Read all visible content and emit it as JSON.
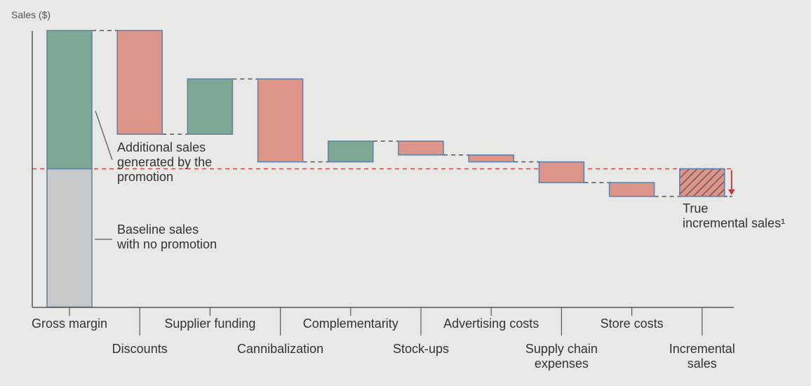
{
  "chart_data": {
    "type": "waterfall",
    "ylabel": "Sales ($)",
    "categories": [
      {
        "label": "Gross margin",
        "lines": [
          "Gross margin"
        ]
      },
      {
        "label": "Discounts",
        "lines": [
          "Discounts"
        ]
      },
      {
        "label": "Supplier funding",
        "lines": [
          "Supplier funding"
        ]
      },
      {
        "label": "Cannibalization",
        "lines": [
          "Cannibalization"
        ]
      },
      {
        "label": "Complementarity",
        "lines": [
          "Complementarity"
        ]
      },
      {
        "label": "Stock-ups",
        "lines": [
          "Stock-ups"
        ]
      },
      {
        "label": "Advertising costs",
        "lines": [
          "Advertising costs"
        ]
      },
      {
        "label": "Supply chain expenses",
        "lines": [
          "Supply chain",
          "expenses"
        ]
      },
      {
        "label": "Store costs",
        "lines": [
          "Store costs"
        ]
      },
      {
        "label": "Incremental sales",
        "lines": [
          "Incremental",
          "sales"
        ]
      }
    ],
    "bars": [
      {
        "category": "Gross margin",
        "start": 0,
        "end": 100,
        "kind": "total"
      },
      {
        "category": "Discounts",
        "start": 100,
        "end": 62.5,
        "kind": "decrease"
      },
      {
        "category": "Supplier funding",
        "start": 62.5,
        "end": 82.5,
        "kind": "increase"
      },
      {
        "category": "Cannibalization",
        "start": 82.5,
        "end": 52.5,
        "kind": "decrease"
      },
      {
        "category": "Complementarity",
        "start": 52.5,
        "end": 60,
        "kind": "increase"
      },
      {
        "category": "Stock-ups",
        "start": 60,
        "end": 55,
        "kind": "decrease"
      },
      {
        "category": "Advertising costs",
        "start": 55,
        "end": 52.5,
        "kind": "decrease"
      },
      {
        "category": "Supply chain expenses",
        "start": 52.5,
        "end": 45,
        "kind": "decrease"
      },
      {
        "category": "Store costs",
        "start": 45,
        "end": 40,
        "kind": "decrease"
      },
      {
        "category": "Incremental sales",
        "start": 40,
        "end": 50,
        "kind": "result"
      }
    ],
    "gross_margin_split": {
      "baseline": 50,
      "additional": 50
    },
    "baseline_level": 50,
    "ylim": [
      -1,
      101
    ],
    "annotations": {
      "additional": [
        "Additional sales",
        "generated by the",
        "promotion"
      ],
      "baseline": [
        "Baseline sales",
        "with no promotion"
      ],
      "true_incremental": [
        "True",
        "incremental sales¹"
      ]
    },
    "colors": {
      "increase": "#7fa894",
      "decrease": "#dd9489",
      "baseline": "#c8c9ca",
      "bar_border": "#5a7fa8",
      "reference_line": "#d64545",
      "arrow": "#c23b3b",
      "hatch": "#6e5a5a",
      "connector": "#555555"
    }
  }
}
